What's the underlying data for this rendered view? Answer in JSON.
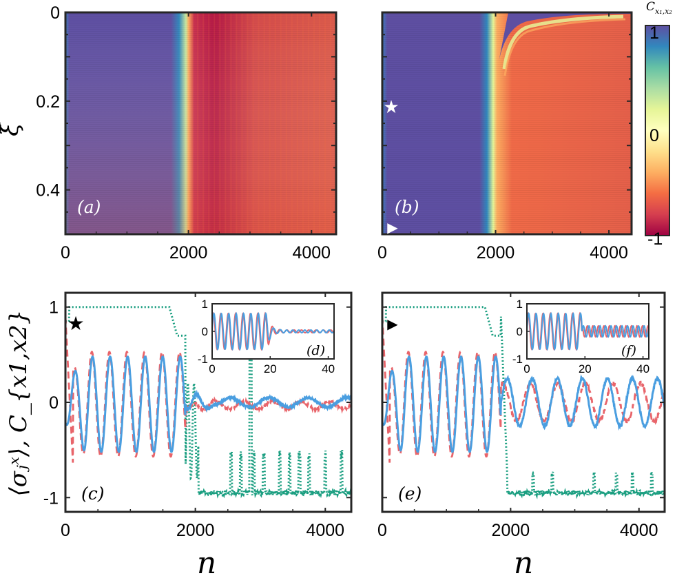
{
  "chart_data": [
    {
      "panel": "a",
      "type": "heatmap",
      "label": "(a)",
      "xticks": [
        "0",
        "2000",
        "4000"
      ],
      "yticks": [
        "0",
        "0.2",
        "0.4"
      ],
      "xlim": [
        0,
        4400
      ],
      "ylim": [
        0,
        0.5
      ],
      "ylabel": "ξ̄",
      "value": "C_{x1,x2}",
      "regions": [
        {
          "n_from": 0,
          "n_to": 1800,
          "value": 1
        },
        {
          "n_from": 1800,
          "n_to": 2000,
          "value": 0
        },
        {
          "n_from": 2000,
          "n_to": 4400,
          "value": -0.85
        }
      ]
    },
    {
      "panel": "b",
      "type": "heatmap",
      "label": "(b)",
      "xticks": [
        "0",
        "2000",
        "4000"
      ],
      "xlim": [
        0,
        4400
      ],
      "ylim": [
        0,
        0.5
      ],
      "markers": [
        {
          "symbol": "★",
          "name": "star",
          "n": 150,
          "xi": 0.21
        },
        {
          "symbol": "▶",
          "name": "triangle",
          "n": 150,
          "xi": 0.49
        }
      ]
    },
    {
      "type": "colorbar",
      "title": "C_{x1,x2}",
      "ticks": [
        "1",
        "0",
        "-1"
      ],
      "range": [
        -1,
        1
      ],
      "colors": [
        "#9e0142",
        "#d53e4f",
        "#f46d43",
        "#fdae61",
        "#fee08b",
        "#ffffbf",
        "#e6f598",
        "#abdda4",
        "#66c2a5",
        "#3288bd",
        "#5e4fa2"
      ]
    },
    {
      "panel": "c",
      "type": "line",
      "label": "(c)",
      "xticks": [
        "0",
        "2000",
        "4000"
      ],
      "yticks": [
        "1",
        "0",
        "-1"
      ],
      "xlim": [
        0,
        4400
      ],
      "ylim": [
        -1.15,
        1.15
      ],
      "xlabel": "n",
      "ylabel": "⟨σⱼˣ⟩, C_{x1,x2}",
      "marker": "★",
      "series": [
        {
          "name": "sigma_blue",
          "color": "#4a9ee0",
          "style": "solid"
        },
        {
          "name": "sigma_red",
          "color": "#e8646a",
          "style": "dashed"
        },
        {
          "name": "correlation",
          "color": "#1a9e80",
          "style": "dotted"
        }
      ],
      "inset": {
        "label": "(d)",
        "xticks": [
          "0",
          "20",
          "40"
        ],
        "yticks": [
          "1",
          "0",
          "-1"
        ],
        "xlim": [
          0,
          42
        ],
        "ylim": [
          -1,
          1
        ]
      }
    },
    {
      "panel": "e",
      "type": "line",
      "label": "(e)",
      "xticks": [
        "0",
        "2000",
        "4000"
      ],
      "xlim": [
        0,
        4400
      ],
      "ylim": [
        -1.15,
        1.15
      ],
      "xlabel": "n",
      "marker": "▶",
      "series": [
        {
          "name": "sigma_blue",
          "color": "#4a9ee0",
          "style": "solid"
        },
        {
          "name": "sigma_red",
          "color": "#e8646a",
          "style": "dashed"
        },
        {
          "name": "correlation",
          "color": "#1a9e80",
          "style": "dotted"
        }
      ],
      "inset": {
        "label": "(f)",
        "xticks": [
          "0",
          "20",
          "40"
        ],
        "yticks": [
          "1",
          "0",
          "-1"
        ],
        "xlim": [
          0,
          42
        ],
        "ylim": [
          -1,
          1
        ]
      }
    }
  ]
}
